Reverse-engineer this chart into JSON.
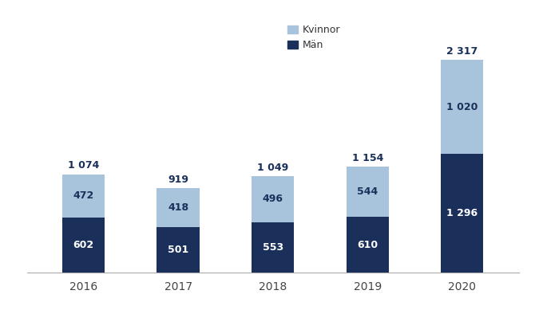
{
  "years": [
    "2016",
    "2017",
    "2018",
    "2019",
    "2020"
  ],
  "man": [
    602,
    501,
    553,
    610,
    1296
  ],
  "kvinnor": [
    472,
    418,
    496,
    544,
    1020
  ],
  "totals": [
    1074,
    919,
    1049,
    1154,
    2317
  ],
  "color_man": "#1a2f5a",
  "color_kvinnor": "#a8c4dc",
  "background_color": "#ffffff",
  "bar_width": 0.45,
  "ylim": [
    0,
    2700
  ],
  "figsize": [
    6.7,
    3.89
  ],
  "dpi": 100
}
